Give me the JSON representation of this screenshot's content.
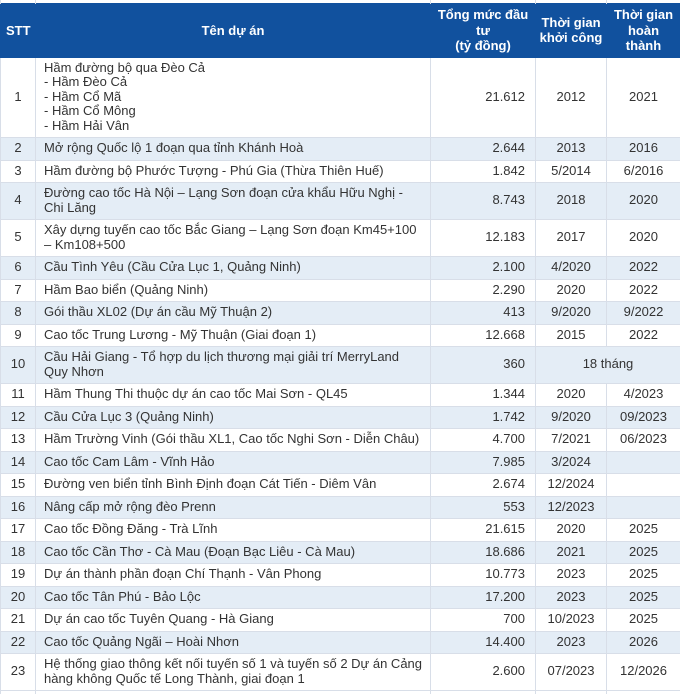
{
  "header": {
    "stt": "STT",
    "name": "Tên dự án",
    "investment": "Tổng mức đầu tư\n(tỷ đồng)",
    "start": "Thời gian\nkhởi công",
    "finish": "Thời gian\nhoàn thành"
  },
  "colors": {
    "header_bg": "#11519e",
    "header_text": "#ffffff",
    "row_bg": "#ffffff",
    "row_alt_bg": "#e4edf6",
    "body_text": "#333333",
    "border": "#d8dee8"
  },
  "chart_data": {
    "type": "table",
    "columns": [
      "STT",
      "Tên dự án",
      "Tổng mức đầu tư (tỷ đồng)",
      "Thời gian khởi công",
      "Thời gian hoàn thành"
    ],
    "rows": [
      {
        "stt": "1",
        "name": "Hầm đường bộ qua Đèo Cả\n- Hầm Đèo Cả\n- Hầm Cổ Mã\n- Hầm Cổ Mông\n- Hầm Hải Vân",
        "investment": "21.612",
        "start": "2012",
        "finish": "2021"
      },
      {
        "stt": "2",
        "name": "Mở rộng Quốc lộ 1 đoạn qua tỉnh Khánh Hoà",
        "investment": "2.644",
        "start": "2013",
        "finish": "2016"
      },
      {
        "stt": "3",
        "name": "Hầm đường bộ Phước Tượng - Phú Gia (Thừa Thiên Huế)",
        "investment": "1.842",
        "start": "5/2014",
        "finish": "6/2016"
      },
      {
        "stt": "4",
        "name": "Đường cao tốc Hà Nội – Lạng Sơn đoạn cửa khẩu Hữu Nghị - Chi Lăng",
        "investment": "8.743",
        "start": "2018",
        "finish": "2020"
      },
      {
        "stt": "5",
        "name": "Xây dựng tuyến cao tốc Bắc Giang – Lạng Sơn đoạn Km45+100 – Km108+500",
        "investment": "12.183",
        "start": "2017",
        "finish": "2020"
      },
      {
        "stt": "6",
        "name": "Cầu Tình Yêu (Cầu Cửa Lục 1, Quảng Ninh)",
        "investment": "2.100",
        "start": "4/2020",
        "finish": "2022"
      },
      {
        "stt": "7",
        "name": "Hầm Bao biển (Quảng Ninh)",
        "investment": "2.290",
        "start": "2020",
        "finish": "2022"
      },
      {
        "stt": "8",
        "name": "Gói thầu XL02 (Dự án cầu Mỹ Thuận 2)",
        "investment": "413",
        "start": "9/2020",
        "finish": "9/2022"
      },
      {
        "stt": "9",
        "name": "Cao tốc Trung Lương - Mỹ Thuận (Giai đoạn 1)",
        "investment": "12.668",
        "start": "2015",
        "finish": "2022"
      },
      {
        "stt": "10",
        "name": "Cầu Hải Giang - Tổ hợp du lịch thương mại giải trí MerryLand Quy Nhơn",
        "investment": "360",
        "duration_merged": "18 tháng"
      },
      {
        "stt": "11",
        "name": "Hầm Thung Thi thuộc dự án cao tốc Mai Sơn - QL45",
        "investment": "1.344",
        "start": "2020",
        "finish": "4/2023"
      },
      {
        "stt": "12",
        "name": "Cầu Cửa Lục 3 (Quảng Ninh)",
        "investment": "1.742",
        "start": "9/2020",
        "finish": "09/2023"
      },
      {
        "stt": "13",
        "name": "Hầm Trường Vinh (Gói thầu XL1, Cao tốc Nghi Sơn - Diễn Châu)",
        "investment": "4.700",
        "start": "7/2021",
        "finish": "06/2023"
      },
      {
        "stt": "14",
        "name": "Cao tốc Cam Lâm - Vĩnh Hảo",
        "investment": "7.985",
        "start": "3/2024",
        "finish": ""
      },
      {
        "stt": "15",
        "name": "Đường ven biển tỉnh Bình Định đoạn Cát Tiến - Diêm Vân",
        "investment": "2.674",
        "start": "12/2024",
        "finish": ""
      },
      {
        "stt": "16",
        "name": "Nâng cấp mở rộng đèo Prenn",
        "investment": "553",
        "start": "12/2023",
        "finish": ""
      },
      {
        "stt": "17",
        "name": "Cao tốc Đồng Đăng - Trà Lĩnh",
        "investment": "21.615",
        "start": "2020",
        "finish": "2025"
      },
      {
        "stt": "18",
        "name": "Cao tốc Cần Thơ - Cà Mau (Đoạn Bạc Liêu - Cà Mau)",
        "investment": "18.686",
        "start": "2021",
        "finish": "2025"
      },
      {
        "stt": "19",
        "name": "Dự án thành phần đoạn Chí Thạnh - Vân Phong",
        "investment": "10.773",
        "start": "2023",
        "finish": "2025"
      },
      {
        "stt": "20",
        "name": "Cao tốc Tân Phú - Bảo Lộc",
        "investment": "17.200",
        "start": "2023",
        "finish": "2025"
      },
      {
        "stt": "21",
        "name": "Dự án cao tốc Tuyên Quang - Hà Giang",
        "investment": "700",
        "start": "10/2023",
        "finish": "2025"
      },
      {
        "stt": "22",
        "name": "Cao tốc Quảng Ngãi – Hoài Nhơn",
        "investment": "14.400",
        "start": "2023",
        "finish": "2026"
      },
      {
        "stt": "23",
        "name": "Hệ thống giao thông kết nối tuyến số 1 và tuyến số 2 Dự án Cảng hàng không Quốc tế Long Thành, giai đoạn 1",
        "investment": "2.600",
        "start": "07/2023",
        "finish": "12/2026"
      }
    ]
  }
}
